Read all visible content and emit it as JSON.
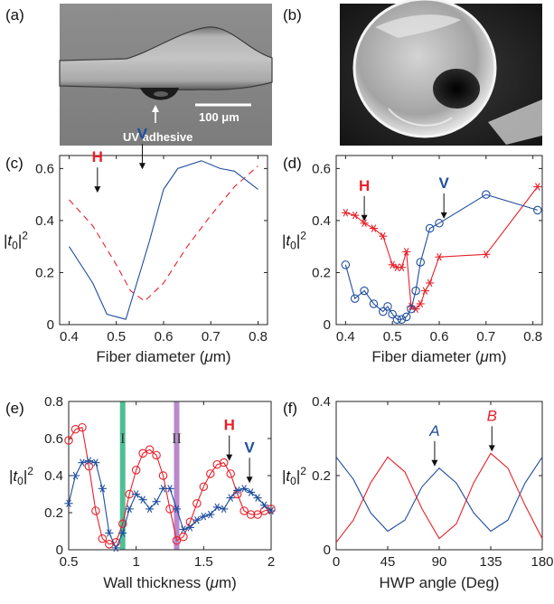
{
  "panels": {
    "a": {
      "label": "(a)",
      "scalebar_text": "100 μm",
      "arrow_text": "UV adhesive"
    },
    "b": {
      "label": "(b)"
    }
  },
  "colors": {
    "red": "#e8202a",
    "blue": "#1f4e9e",
    "green": "#3cb88a",
    "purple": "#b07cc6",
    "dark_blue_label": "#1f2f8a"
  },
  "chart_data": [
    {
      "id": "c",
      "panel_label": "(c)",
      "type": "line",
      "xlabel": "Fiber diameter (μm)",
      "ylabel": "|t0|2",
      "xlim": [
        0.38,
        0.82
      ],
      "ylim": [
        0,
        0.65
      ],
      "xticks": [
        0.4,
        0.5,
        0.6,
        0.7,
        0.8
      ],
      "xticklabels": [
        "0.4",
        "0.5",
        "0.6",
        "0.7",
        "0.8"
      ],
      "yticks": [
        0,
        0.2,
        0.4,
        0.6
      ],
      "yticklabels": [
        "0",
        "0.2",
        "0.4",
        "0.6"
      ],
      "annotations": [
        {
          "text": "H",
          "x": 0.46,
          "y": 0.5,
          "color": "red"
        },
        {
          "text": "V",
          "x": 0.555,
          "y": 0.59,
          "color": "blue"
        }
      ],
      "series": [
        {
          "name": "H",
          "color": "red",
          "dash": true,
          "x": [
            0.4,
            0.45,
            0.5,
            0.53,
            0.56,
            0.6,
            0.65,
            0.7,
            0.75,
            0.8
          ],
          "y": [
            0.48,
            0.38,
            0.23,
            0.13,
            0.09,
            0.16,
            0.3,
            0.42,
            0.53,
            0.61
          ]
        },
        {
          "name": "V",
          "color": "blue",
          "dash": false,
          "x": [
            0.4,
            0.45,
            0.48,
            0.52,
            0.55,
            0.57,
            0.6,
            0.63,
            0.68,
            0.72,
            0.75,
            0.8
          ],
          "y": [
            0.3,
            0.16,
            0.04,
            0.02,
            0.2,
            0.32,
            0.52,
            0.6,
            0.63,
            0.6,
            0.59,
            0.52
          ]
        }
      ]
    },
    {
      "id": "d",
      "panel_label": "(d)",
      "type": "line",
      "xlabel": "Fiber diameter (μm)",
      "ylabel": "|t0|2",
      "xlim": [
        0.38,
        0.82
      ],
      "ylim": [
        0,
        0.65
      ],
      "xticks": [
        0.4,
        0.5,
        0.6,
        0.7,
        0.8
      ],
      "xticklabels": [
        "0.4",
        "0.5",
        "0.6",
        "0.7",
        "0.8"
      ],
      "yticks": [
        0,
        0.2,
        0.4,
        0.6
      ],
      "yticklabels": [
        "0",
        "0.2",
        "0.4",
        "0.6"
      ],
      "annotations": [
        {
          "text": "H",
          "x": 0.44,
          "y": 0.39,
          "color": "red"
        },
        {
          "text": "V",
          "x": 0.61,
          "y": 0.4,
          "color": "blue"
        }
      ],
      "series": [
        {
          "name": "H",
          "color": "red",
          "marker": "star",
          "x": [
            0.4,
            0.42,
            0.44,
            0.46,
            0.48,
            0.5,
            0.51,
            0.52,
            0.53,
            0.54,
            0.55,
            0.56,
            0.57,
            0.58,
            0.6,
            0.7,
            0.81
          ],
          "y": [
            0.43,
            0.42,
            0.39,
            0.37,
            0.34,
            0.23,
            0.22,
            0.22,
            0.28,
            0.07,
            0.06,
            0.08,
            0.13,
            0.16,
            0.26,
            0.27,
            0.53
          ]
        },
        {
          "name": "V",
          "color": "blue",
          "marker": "circle",
          "x": [
            0.4,
            0.42,
            0.44,
            0.46,
            0.48,
            0.49,
            0.5,
            0.51,
            0.52,
            0.53,
            0.54,
            0.55,
            0.56,
            0.58,
            0.6,
            0.7,
            0.81
          ],
          "y": [
            0.23,
            0.1,
            0.13,
            0.08,
            0.05,
            0.07,
            0.04,
            0.02,
            0.02,
            0.03,
            0.06,
            0.13,
            0.24,
            0.37,
            0.39,
            0.5,
            0.44
          ]
        }
      ]
    },
    {
      "id": "e",
      "panel_label": "(e)",
      "type": "line",
      "xlabel": "Wall thickness (μm)",
      "ylabel": "|t0|2",
      "xlim": [
        0.5,
        2.0
      ],
      "ylim": [
        0,
        0.8
      ],
      "xticks": [
        0.5,
        1,
        1.5,
        2
      ],
      "xticklabels": [
        "0.5",
        "1",
        "1.5",
        "2"
      ],
      "yticks": [
        0,
        0.2,
        0.4,
        0.6,
        0.8
      ],
      "yticklabels": [
        "0",
        "0.2",
        "0.4",
        "0.6",
        "0.8"
      ],
      "bands": [
        {
          "label": "I",
          "x0": 0.88,
          "x1": 0.92,
          "color": "green"
        },
        {
          "label": "II",
          "x0": 1.28,
          "x1": 1.32,
          "color": "purple"
        }
      ],
      "annotations": [
        {
          "text": "H",
          "x": 1.69,
          "y": 0.47,
          "color": "red"
        },
        {
          "text": "V",
          "x": 1.84,
          "y": 0.35,
          "color": "blue"
        }
      ],
      "series": [
        {
          "name": "H",
          "color": "red",
          "marker": "circle",
          "x": [
            0.5,
            0.55,
            0.6,
            0.65,
            0.7,
            0.75,
            0.8,
            0.85,
            0.9,
            0.95,
            1.0,
            1.05,
            1.1,
            1.15,
            1.2,
            1.25,
            1.3,
            1.35,
            1.4,
            1.45,
            1.5,
            1.55,
            1.6,
            1.65,
            1.7,
            1.75,
            1.8,
            1.85,
            1.9,
            1.95,
            2.0
          ],
          "y": [
            0.59,
            0.65,
            0.66,
            0.45,
            0.21,
            0.06,
            0.03,
            0.04,
            0.14,
            0.3,
            0.43,
            0.52,
            0.54,
            0.51,
            0.4,
            0.22,
            0.05,
            0.07,
            0.15,
            0.25,
            0.34,
            0.41,
            0.46,
            0.47,
            0.41,
            0.3,
            0.21,
            0.19,
            0.19,
            0.21,
            0.22
          ]
        },
        {
          "name": "V",
          "color": "blue",
          "marker": "star",
          "x": [
            0.5,
            0.55,
            0.6,
            0.65,
            0.7,
            0.75,
            0.8,
            0.85,
            0.9,
            0.95,
            1.0,
            1.05,
            1.1,
            1.15,
            1.2,
            1.25,
            1.3,
            1.35,
            1.4,
            1.45,
            1.5,
            1.55,
            1.6,
            1.65,
            1.7,
            1.75,
            1.8,
            1.85,
            1.9,
            1.95,
            2.0
          ],
          "y": [
            0.25,
            0.4,
            0.47,
            0.48,
            0.47,
            0.33,
            0.09,
            0.01,
            0.09,
            0.22,
            0.3,
            0.27,
            0.22,
            0.26,
            0.33,
            0.33,
            0.22,
            0.11,
            0.12,
            0.16,
            0.18,
            0.19,
            0.23,
            0.22,
            0.28,
            0.32,
            0.33,
            0.31,
            0.28,
            0.24,
            0.21
          ]
        }
      ]
    },
    {
      "id": "f",
      "panel_label": "(f)",
      "type": "line",
      "xlabel": "HWP angle (Deg)",
      "ylabel": "|t0|2",
      "xlim": [
        0,
        180
      ],
      "ylim": [
        0,
        0.4
      ],
      "xticks": [
        0,
        45,
        90,
        135,
        180
      ],
      "xticklabels": [
        "0",
        "45",
        "90",
        "135",
        "180"
      ],
      "yticks": [
        0,
        0.2,
        0.4
      ],
      "yticklabels": [
        "0",
        "0.2",
        "0.4"
      ],
      "annotations": [
        {
          "text": "A",
          "x": 86,
          "y": 0.22,
          "color": "blue"
        },
        {
          "text": "B",
          "x": 136,
          "y": 0.26,
          "color": "red"
        }
      ],
      "series": [
        {
          "name": "A",
          "color": "blue",
          "x": [
            0,
            15,
            30,
            45,
            60,
            75,
            90,
            105,
            120,
            135,
            150,
            165,
            180
          ],
          "y": [
            0.25,
            0.19,
            0.1,
            0.05,
            0.08,
            0.17,
            0.22,
            0.18,
            0.1,
            0.05,
            0.08,
            0.18,
            0.25
          ]
        },
        {
          "name": "B",
          "color": "red",
          "x": [
            0,
            15,
            30,
            45,
            60,
            75,
            90,
            105,
            120,
            135,
            150,
            165,
            180
          ],
          "y": [
            0.02,
            0.08,
            0.18,
            0.25,
            0.21,
            0.11,
            0.03,
            0.07,
            0.18,
            0.26,
            0.22,
            0.12,
            0.03
          ]
        }
      ]
    }
  ]
}
